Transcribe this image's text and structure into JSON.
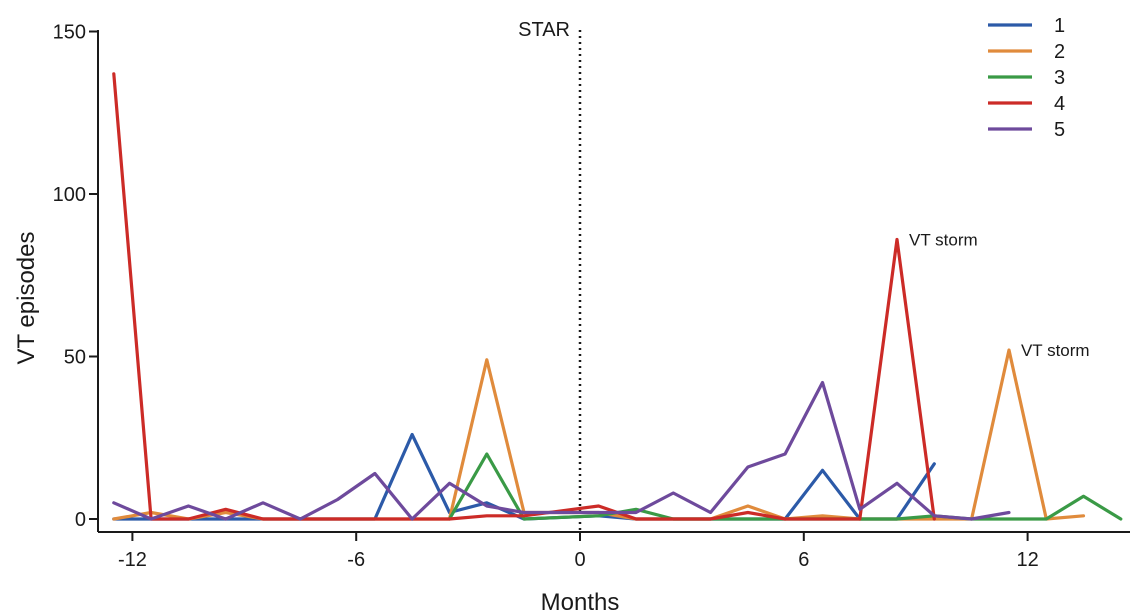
{
  "chart_data": {
    "type": "line",
    "title": "",
    "xlabel": "Months",
    "ylabel": "VT episodes",
    "xlim": [
      -13,
      14.8
    ],
    "ylim": [
      0,
      150
    ],
    "x_ticks": [
      -12,
      -6,
      0,
      6,
      12
    ],
    "x_tick_labels": [
      "-12",
      "-6",
      "0",
      "6",
      "12"
    ],
    "y_ticks": [
      0,
      50,
      100,
      150
    ],
    "y_tick_labels": [
      "0",
      "50",
      "100",
      "150"
    ],
    "grid": false,
    "legend_position": "top-right",
    "reference_line": {
      "x": 0,
      "label": "STAR",
      "style": "dotted"
    },
    "annotations": [
      {
        "text": "VT storm",
        "x": 8.5,
        "y": 86
      },
      {
        "text": "VT storm",
        "x": 11.5,
        "y": 52
      }
    ],
    "series": [
      {
        "name": "1",
        "color": "#2c5aa8",
        "points": [
          [
            -12.5,
            0
          ],
          [
            -11.5,
            0
          ],
          [
            -10.5,
            0
          ],
          [
            -9.5,
            0
          ],
          [
            -8.5,
            0
          ],
          [
            -7.5,
            0
          ],
          [
            -6.5,
            0
          ],
          [
            -5.5,
            0
          ],
          [
            -4.5,
            26
          ],
          [
            -3.5,
            2
          ],
          [
            -2.5,
            5
          ],
          [
            -1.5,
            0
          ],
          [
            0.5,
            1
          ],
          [
            1.5,
            0
          ],
          [
            2.5,
            0
          ],
          [
            3.5,
            0
          ],
          [
            4.5,
            0
          ],
          [
            5.5,
            0
          ],
          [
            6.5,
            15
          ],
          [
            7.5,
            0
          ],
          [
            8.5,
            0
          ],
          [
            9.5,
            17
          ]
        ]
      },
      {
        "name": "2",
        "color": "#e08b3c",
        "points": [
          [
            -12.5,
            0
          ],
          [
            -11.5,
            2
          ],
          [
            -10.5,
            0
          ],
          [
            -9.5,
            2
          ],
          [
            -8.5,
            0
          ],
          [
            -7.5,
            0
          ],
          [
            -6.5,
            0
          ],
          [
            -5.5,
            0
          ],
          [
            -4.5,
            0
          ],
          [
            -3.5,
            0
          ],
          [
            -2.5,
            49
          ],
          [
            -1.5,
            2
          ],
          [
            0.5,
            2
          ],
          [
            1.5,
            0
          ],
          [
            2.5,
            0
          ],
          [
            3.5,
            0
          ],
          [
            4.5,
            4
          ],
          [
            5.5,
            0
          ],
          [
            6.5,
            1
          ],
          [
            7.5,
            0
          ],
          [
            8.5,
            0
          ],
          [
            9.5,
            0
          ],
          [
            10.5,
            0
          ],
          [
            11.5,
            52
          ],
          [
            12.5,
            0
          ],
          [
            13.5,
            1
          ]
        ]
      },
      {
        "name": "3",
        "color": "#3a9a46",
        "points": [
          [
            -3.5,
            0
          ],
          [
            -2.5,
            20
          ],
          [
            -1.5,
            0
          ],
          [
            0.5,
            1
          ],
          [
            1.5,
            3
          ],
          [
            2.5,
            0
          ],
          [
            3.5,
            0
          ],
          [
            4.5,
            0
          ],
          [
            5.5,
            0
          ],
          [
            6.5,
            0
          ],
          [
            7.5,
            0
          ],
          [
            8.5,
            0
          ],
          [
            9.5,
            1
          ],
          [
            10.5,
            0
          ],
          [
            11.5,
            0
          ],
          [
            12.5,
            0
          ],
          [
            13.5,
            7
          ],
          [
            14.5,
            0
          ]
        ]
      },
      {
        "name": "4",
        "color": "#cc2b27",
        "points": [
          [
            -12.5,
            137
          ],
          [
            -11.5,
            0
          ],
          [
            -10.5,
            0
          ],
          [
            -9.5,
            3
          ],
          [
            -8.5,
            0
          ],
          [
            -7.5,
            0
          ],
          [
            -6.5,
            0
          ],
          [
            -5.5,
            0
          ],
          [
            -4.5,
            0
          ],
          [
            -3.5,
            0
          ],
          [
            -2.5,
            1
          ],
          [
            -1.5,
            1
          ],
          [
            0.5,
            4
          ],
          [
            1.5,
            0
          ],
          [
            2.5,
            0
          ],
          [
            3.5,
            0
          ],
          [
            4.5,
            2
          ],
          [
            5.5,
            0
          ],
          [
            6.5,
            0
          ],
          [
            7.5,
            0
          ],
          [
            8.5,
            86
          ],
          [
            9.5,
            0
          ]
        ]
      },
      {
        "name": "5",
        "color": "#6e4a9c",
        "points": [
          [
            -12.5,
            5
          ],
          [
            -11.5,
            0
          ],
          [
            -10.5,
            4
          ],
          [
            -9.5,
            0
          ],
          [
            -8.5,
            5
          ],
          [
            -7.5,
            0
          ],
          [
            -6.5,
            6
          ],
          [
            -5.5,
            14
          ],
          [
            -4.5,
            0
          ],
          [
            -3.5,
            11
          ],
          [
            -2.5,
            4
          ],
          [
            -1.5,
            2
          ],
          [
            0.5,
            2
          ],
          [
            1.5,
            2
          ],
          [
            2.5,
            8
          ],
          [
            3.5,
            2
          ],
          [
            4.5,
            16
          ],
          [
            5.5,
            20
          ],
          [
            6.5,
            42
          ],
          [
            7.5,
            3
          ],
          [
            8.5,
            11
          ],
          [
            9.5,
            1
          ],
          [
            10.5,
            0
          ],
          [
            11.5,
            2
          ]
        ]
      }
    ]
  }
}
